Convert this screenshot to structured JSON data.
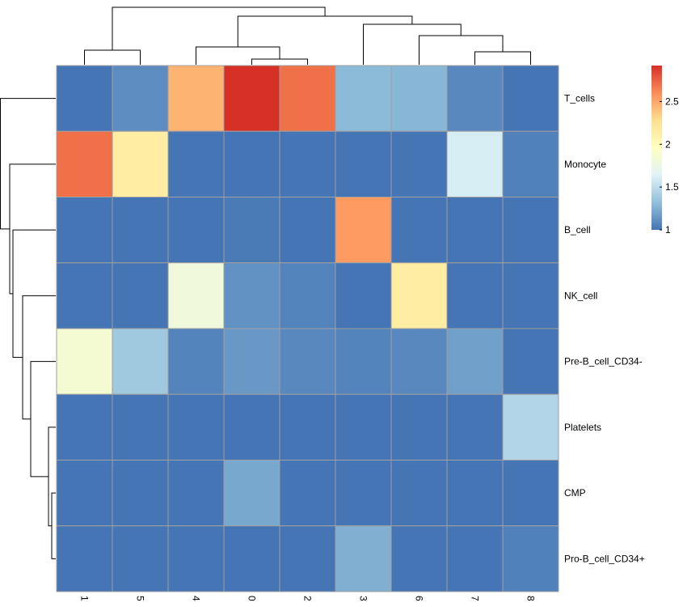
{
  "chart_data": {
    "type": "heatmap",
    "title": "",
    "xlabel": "",
    "ylabel": "",
    "columns": [
      "1",
      "5",
      "4",
      "0",
      "2",
      "3",
      "6",
      "7",
      "8"
    ],
    "rows": [
      "T_cells",
      "Monocyte",
      "B_cell",
      "NK_cell",
      "Pre-B_cell_CD34-",
      "Platelets",
      "CMP",
      "Pro-B_cell_CD34+"
    ],
    "values": [
      [
        1.0,
        1.1,
        2.45,
        2.92,
        2.7,
        1.3,
        1.28,
        1.08,
        1.0
      ],
      [
        2.7,
        2.15,
        1.0,
        1.0,
        1.0,
        1.0,
        1.0,
        1.6,
        1.05
      ],
      [
        1.0,
        1.0,
        1.0,
        1.02,
        1.0,
        2.55,
        1.0,
        1.0,
        1.0
      ],
      [
        1.0,
        1.0,
        1.8,
        1.12,
        1.06,
        1.0,
        2.15,
        1.0,
        1.0
      ],
      [
        1.85,
        1.38,
        1.06,
        1.15,
        1.08,
        1.06,
        1.08,
        1.18,
        1.0
      ],
      [
        1.0,
        1.0,
        1.0,
        1.0,
        1.0,
        1.0,
        1.0,
        1.0,
        1.45
      ],
      [
        1.0,
        1.0,
        1.0,
        1.22,
        1.0,
        1.0,
        1.0,
        1.0,
        1.0
      ],
      [
        1.0,
        1.0,
        1.0,
        1.0,
        1.0,
        1.25,
        1.0,
        1.0,
        1.05
      ]
    ],
    "value_range": [
      1.0,
      2.92
    ],
    "colorbar": {
      "ticks": [
        1,
        1.5,
        2,
        2.5
      ],
      "tick_labels": [
        "1",
        "1.5",
        "2",
        "2.5"
      ],
      "colors": [
        "#4575B4",
        "#91BFDB",
        "#E0F3F8",
        "#FFFFBF",
        "#FEE090",
        "#FC8D59",
        "#D73027"
      ]
    },
    "column_dendrogram": true,
    "row_dendrogram": true,
    "grid_color": "#A0A0A0",
    "legend_position": "right"
  }
}
